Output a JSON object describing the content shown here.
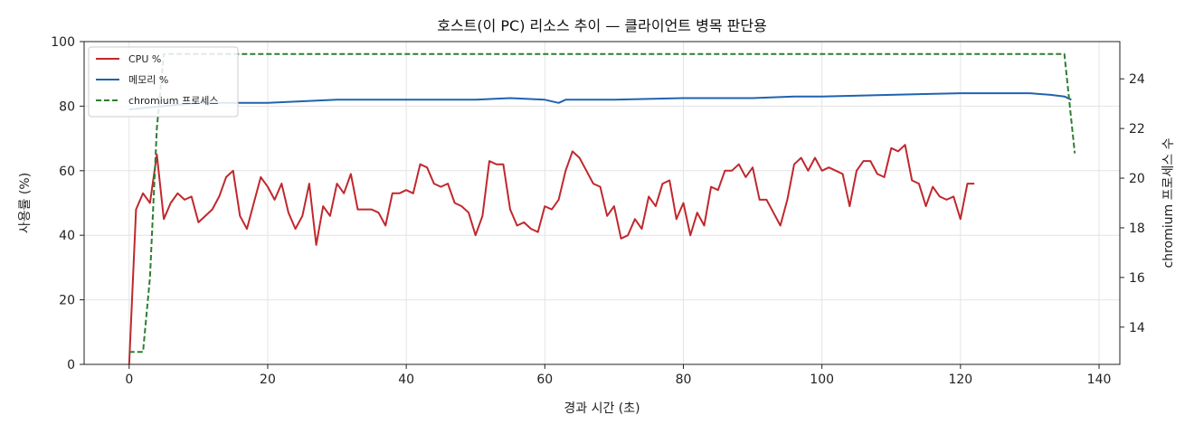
{
  "chart_data": {
    "type": "line",
    "title": "호스트(이 PC) 리소스 추이 — 클라이언트 병목 판단용",
    "xlabel": "경과 시간 (초)",
    "ylabel": "사용률 (%)",
    "y2label": "chromium 프로세스 수",
    "xlim": [
      -6.5,
      143
    ],
    "ylim": [
      0,
      100
    ],
    "y2lim": [
      12.5,
      25.5
    ],
    "xticks": [
      0,
      20,
      40,
      60,
      80,
      100,
      120,
      140
    ],
    "yticks": [
      0,
      20,
      40,
      60,
      80,
      100
    ],
    "y2ticks": [
      14,
      16,
      18,
      20,
      22,
      24
    ],
    "grid": true,
    "legend_position": "top-left",
    "series": [
      {
        "name": "CPU %",
        "axis": "left",
        "color": "#c0282d",
        "style": "solid",
        "points": [
          [
            0,
            0
          ],
          [
            1,
            48
          ],
          [
            2,
            53
          ],
          [
            3,
            50
          ],
          [
            4,
            65
          ],
          [
            5,
            45
          ],
          [
            6,
            50
          ],
          [
            7,
            53
          ],
          [
            8,
            51
          ],
          [
            9,
            52
          ],
          [
            10,
            44
          ],
          [
            12,
            48
          ],
          [
            13,
            52
          ],
          [
            14,
            58
          ],
          [
            15,
            60
          ],
          [
            16,
            46
          ],
          [
            17,
            42
          ],
          [
            18,
            50
          ],
          [
            19,
            58
          ],
          [
            20,
            55
          ],
          [
            21,
            51
          ],
          [
            22,
            56
          ],
          [
            23,
            47
          ],
          [
            24,
            42
          ],
          [
            25,
            46
          ],
          [
            26,
            56
          ],
          [
            27,
            37
          ],
          [
            28,
            49
          ],
          [
            29,
            46
          ],
          [
            30,
            56
          ],
          [
            31,
            53
          ],
          [
            32,
            59
          ],
          [
            33,
            48
          ],
          [
            34,
            48
          ],
          [
            35,
            48
          ],
          [
            36,
            47
          ],
          [
            37,
            43
          ],
          [
            38,
            53
          ],
          [
            39,
            53
          ],
          [
            40,
            54
          ],
          [
            41,
            53
          ],
          [
            42,
            62
          ],
          [
            43,
            61
          ],
          [
            44,
            56
          ],
          [
            45,
            55
          ],
          [
            46,
            56
          ],
          [
            47,
            50
          ],
          [
            48,
            49
          ],
          [
            49,
            47
          ],
          [
            50,
            40
          ],
          [
            51,
            46
          ],
          [
            52,
            63
          ],
          [
            53,
            62
          ],
          [
            54,
            62
          ],
          [
            55,
            48
          ],
          [
            56,
            43
          ],
          [
            57,
            44
          ],
          [
            58,
            42
          ],
          [
            59,
            41
          ],
          [
            60,
            49
          ],
          [
            61,
            48
          ],
          [
            62,
            51
          ],
          [
            63,
            60
          ],
          [
            64,
            66
          ],
          [
            65,
            64
          ],
          [
            66,
            60
          ],
          [
            67,
            56
          ],
          [
            68,
            55
          ],
          [
            69,
            46
          ],
          [
            70,
            49
          ],
          [
            71,
            39
          ],
          [
            72,
            40
          ],
          [
            73,
            45
          ],
          [
            74,
            42
          ],
          [
            75,
            52
          ],
          [
            76,
            49
          ],
          [
            77,
            56
          ],
          [
            78,
            57
          ],
          [
            79,
            45
          ],
          [
            80,
            50
          ],
          [
            81,
            40
          ],
          [
            82,
            47
          ],
          [
            83,
            43
          ],
          [
            84,
            55
          ],
          [
            85,
            54
          ],
          [
            86,
            60
          ],
          [
            87,
            60
          ],
          [
            88,
            62
          ],
          [
            89,
            58
          ],
          [
            90,
            61
          ],
          [
            91,
            51
          ],
          [
            92,
            51
          ],
          [
            93,
            47
          ],
          [
            94,
            43
          ],
          [
            95,
            51
          ],
          [
            96,
            62
          ],
          [
            97,
            64
          ],
          [
            98,
            60
          ],
          [
            99,
            64
          ],
          [
            100,
            60
          ],
          [
            101,
            61
          ],
          [
            102,
            60
          ],
          [
            103,
            59
          ],
          [
            104,
            49
          ],
          [
            105,
            60
          ],
          [
            106,
            63
          ],
          [
            107,
            63
          ],
          [
            108,
            59
          ],
          [
            109,
            58
          ],
          [
            110,
            67
          ],
          [
            111,
            66
          ],
          [
            112,
            68
          ],
          [
            113,
            57
          ],
          [
            114,
            56
          ],
          [
            115,
            49
          ],
          [
            116,
            55
          ],
          [
            117,
            52
          ],
          [
            118,
            51
          ],
          [
            119,
            52
          ],
          [
            120,
            45
          ],
          [
            121,
            56
          ],
          [
            122,
            56
          ]
        ]
      },
      {
        "name": "메모리 %",
        "axis": "left",
        "color": "#1f63b0",
        "style": "solid",
        "points": [
          [
            0,
            79
          ],
          [
            10,
            81
          ],
          [
            20,
            81
          ],
          [
            30,
            82
          ],
          [
            40,
            82
          ],
          [
            50,
            82
          ],
          [
            55,
            82.5
          ],
          [
            60,
            82
          ],
          [
            62,
            81
          ],
          [
            63,
            82
          ],
          [
            64,
            82
          ],
          [
            65,
            82
          ],
          [
            70,
            82
          ],
          [
            80,
            82.5
          ],
          [
            90,
            82.5
          ],
          [
            96,
            83
          ],
          [
            100,
            83
          ],
          [
            110,
            83.5
          ],
          [
            120,
            84
          ],
          [
            130,
            84
          ],
          [
            133,
            83.5
          ],
          [
            135,
            83
          ],
          [
            136,
            82
          ]
        ]
      },
      {
        "name": "chromium 프로세스",
        "axis": "right",
        "color": "#2e7d32",
        "style": "dashed",
        "points": [
          [
            0,
            13
          ],
          [
            2,
            13
          ],
          [
            3,
            16
          ],
          [
            4,
            22
          ],
          [
            5,
            25
          ],
          [
            135,
            25
          ],
          [
            136.5,
            21
          ]
        ]
      }
    ]
  }
}
